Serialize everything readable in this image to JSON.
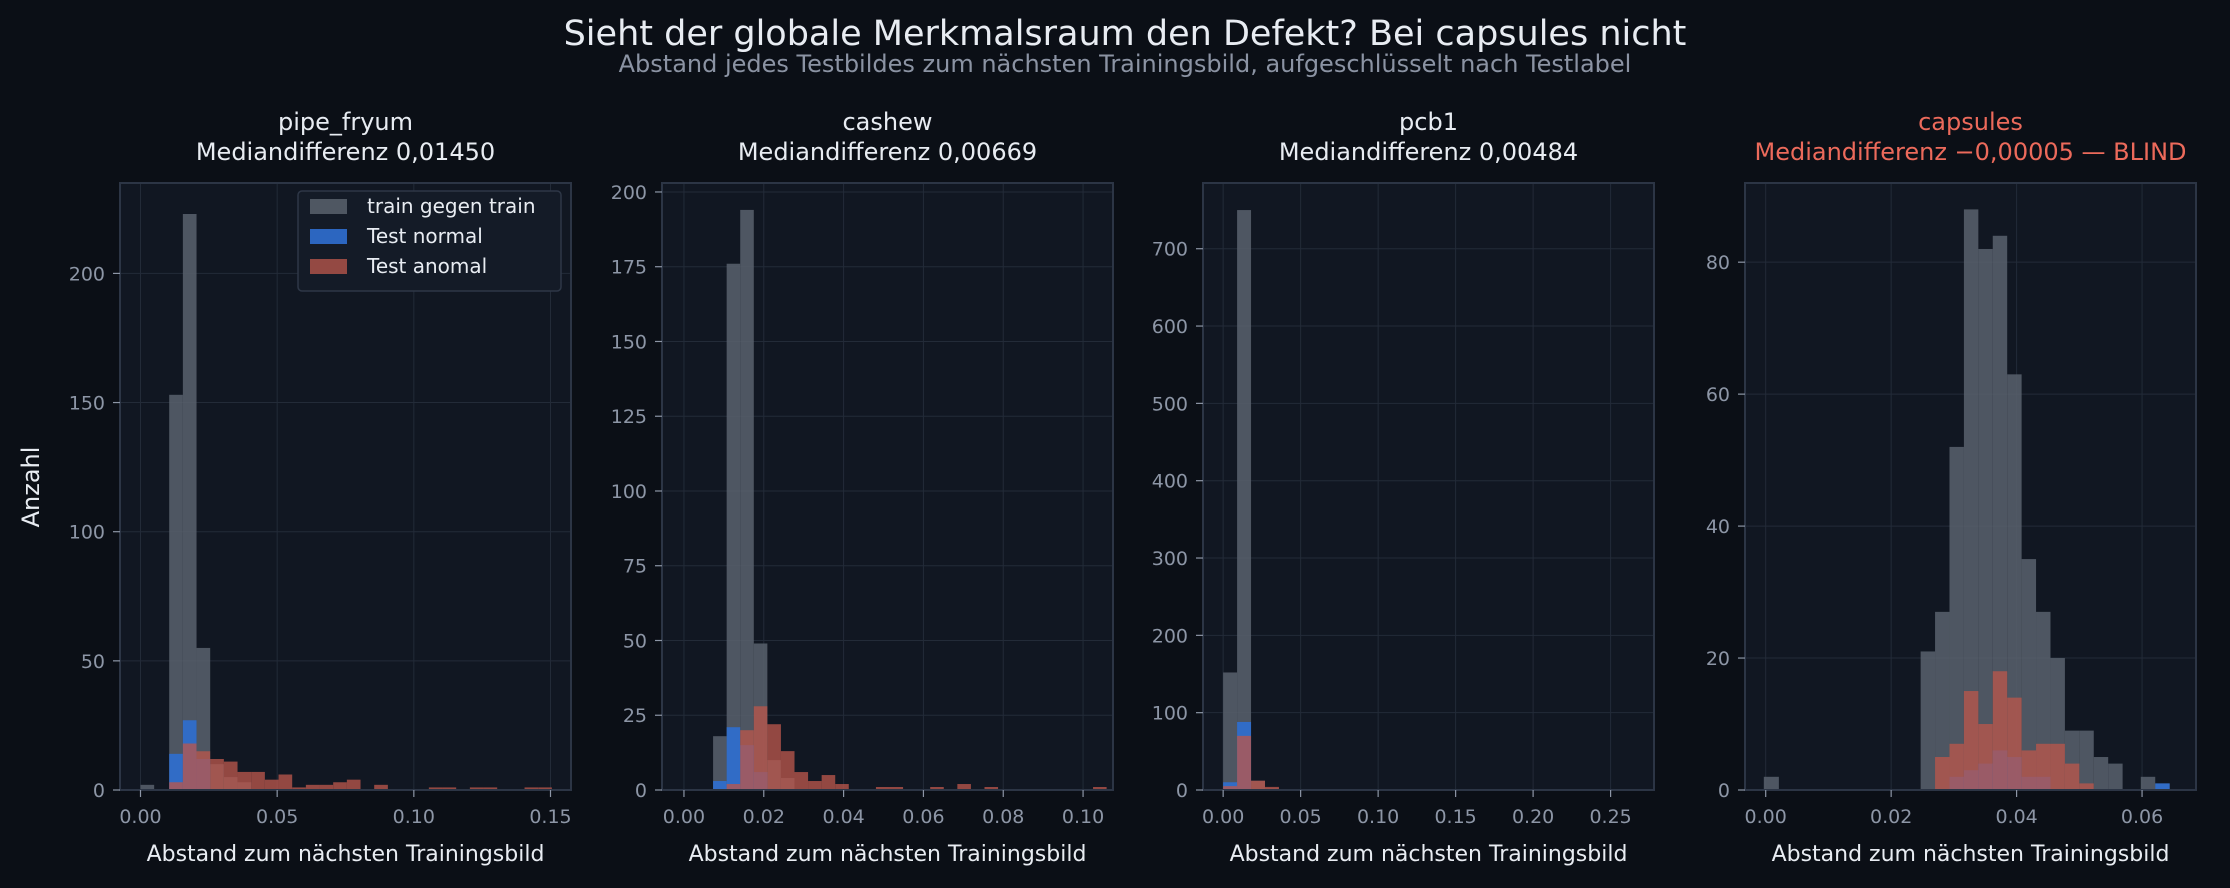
{
  "figure": {
    "title": "Sieht der globale Merkmalsraum den Defekt? Bei capsules nicht",
    "subtitle": "Abstand jedes Testbildes zum nächsten Trainingsbild, aufgeschlüsselt nach Testlabel",
    "ylabel": "Anzahl"
  },
  "colors": {
    "background": "#0b0f16",
    "plot_bg": "#111722",
    "grid": "#232b38",
    "spine": "#2c3545",
    "tick_text": "#8d96a6",
    "text": "#e8ecf2",
    "subtitle": "#8b93a3",
    "highlight": "#ec6a5b",
    "train": "#59616d",
    "test_normal": "#2f6fd1",
    "test_anomal": "#b8564c"
  },
  "legend": {
    "position": "top-right",
    "entries": [
      "train gegen train",
      "Test normal",
      "Test anomal"
    ]
  },
  "chart_data": [
    {
      "type": "bar",
      "title": "pipe_fryum",
      "subtitle": "Mediandifferenz 0,01450",
      "xlabel": "Abstand zum nächsten Trainingsbild",
      "ylabel": "Anzahl",
      "xlim": [
        -0.0075,
        0.1575
      ],
      "ylim": [
        0,
        235
      ],
      "xticks": [
        0.0,
        0.05,
        0.1,
        0.15
      ],
      "xticklabels": [
        "0.00",
        "0.05",
        "0.10",
        "0.15"
      ],
      "yticks": [
        0,
        50,
        100,
        150,
        200
      ],
      "yticklabels": [
        "0",
        "50",
        "100",
        "150",
        "200"
      ],
      "grid": true,
      "legend": true,
      "highlight": false,
      "series": [
        {
          "name": "train gegen train",
          "bins": [
            [
              0.0,
              0.005,
              2
            ],
            [
              0.0105,
              0.0155,
              153
            ],
            [
              0.0155,
              0.0205,
              223
            ],
            [
              0.0205,
              0.0255,
              55
            ],
            [
              0.0255,
              0.0305,
              10
            ],
            [
              0.0305,
              0.0355,
              5
            ],
            [
              0.0355,
              0.0405,
              3
            ]
          ]
        },
        {
          "name": "Test normal",
          "bins": [
            [
              0.0105,
              0.0155,
              14
            ],
            [
              0.0155,
              0.0205,
              27
            ],
            [
              0.0205,
              0.0255,
              12
            ]
          ]
        },
        {
          "name": "Test anomal",
          "bins": [
            [
              0.0105,
              0.0155,
              3
            ],
            [
              0.0155,
              0.0205,
              18
            ],
            [
              0.0205,
              0.0255,
              15
            ],
            [
              0.0255,
              0.0305,
              12
            ],
            [
              0.0305,
              0.0355,
              11
            ],
            [
              0.0355,
              0.0405,
              7
            ],
            [
              0.0405,
              0.0455,
              7
            ],
            [
              0.0455,
              0.0505,
              4
            ],
            [
              0.0505,
              0.0555,
              6
            ],
            [
              0.0555,
              0.0605,
              1
            ],
            [
              0.0605,
              0.0655,
              2
            ],
            [
              0.0655,
              0.0705,
              2
            ],
            [
              0.0705,
              0.0755,
              3
            ],
            [
              0.0755,
              0.0805,
              4
            ],
            [
              0.0855,
              0.0905,
              2
            ],
            [
              0.1055,
              0.1105,
              1
            ],
            [
              0.1105,
              0.1155,
              1
            ],
            [
              0.1205,
              0.1255,
              1
            ],
            [
              0.1255,
              0.1305,
              1
            ],
            [
              0.1405,
              0.1455,
              1
            ],
            [
              0.1455,
              0.1505,
              1
            ]
          ]
        }
      ]
    },
    {
      "type": "bar",
      "title": "cashew",
      "subtitle": "Mediandifferenz 0,00669",
      "xlabel": "Abstand zum nächsten Trainingsbild",
      "ylabel": "",
      "xlim": [
        -0.0055,
        0.1075
      ],
      "ylim": [
        0,
        203
      ],
      "xticks": [
        0.0,
        0.02,
        0.04,
        0.06,
        0.08,
        0.1
      ],
      "xticklabels": [
        "0.00",
        "0.02",
        "0.04",
        "0.06",
        "0.08",
        "0.10"
      ],
      "yticks": [
        0,
        25,
        50,
        75,
        100,
        125,
        150,
        175,
        200
      ],
      "yticklabels": [
        "0",
        "25",
        "50",
        "75",
        "100",
        "125",
        "150",
        "175",
        "200"
      ],
      "grid": true,
      "legend": false,
      "highlight": false,
      "series": [
        {
          "name": "train gegen train",
          "bins": [
            [
              0.0073,
              0.0107,
              18
            ],
            [
              0.0107,
              0.0141,
              176
            ],
            [
              0.0141,
              0.0175,
              194
            ],
            [
              0.0175,
              0.0209,
              49
            ],
            [
              0.0209,
              0.0243,
              10
            ],
            [
              0.0243,
              0.0277,
              4
            ]
          ]
        },
        {
          "name": "Test normal",
          "bins": [
            [
              0.0073,
              0.0107,
              3
            ],
            [
              0.0107,
              0.0141,
              21
            ],
            [
              0.0141,
              0.0175,
              15
            ],
            [
              0.0175,
              0.0209,
              6
            ]
          ]
        },
        {
          "name": "Test anomal",
          "bins": [
            [
              0.0107,
              0.0141,
              2
            ],
            [
              0.0141,
              0.0175,
              20
            ],
            [
              0.0175,
              0.0209,
              28
            ],
            [
              0.0209,
              0.0243,
              22
            ],
            [
              0.0243,
              0.0277,
              13
            ],
            [
              0.0277,
              0.0311,
              6
            ],
            [
              0.0311,
              0.0345,
              3
            ],
            [
              0.0345,
              0.0379,
              5
            ],
            [
              0.0379,
              0.0413,
              2
            ],
            [
              0.0481,
              0.0515,
              1
            ],
            [
              0.0515,
              0.0549,
              1
            ],
            [
              0.0617,
              0.0651,
              1
            ],
            [
              0.0685,
              0.0719,
              2
            ],
            [
              0.0753,
              0.0787,
              1
            ],
            [
              0.1025,
              0.1059,
              1
            ]
          ]
        }
      ]
    },
    {
      "type": "bar",
      "title": "pcb1",
      "subtitle": "Mediandifferenz 0,00484",
      "xlabel": "Abstand zum nächsten Trainingsbild",
      "ylabel": "",
      "xlim": [
        -0.013,
        0.278
      ],
      "ylim": [
        0,
        785
      ],
      "xticks": [
        0.0,
        0.05,
        0.1,
        0.15,
        0.2,
        0.25
      ],
      "xticklabels": [
        "0.00",
        "0.05",
        "0.10",
        "0.15",
        "0.20",
        "0.25"
      ],
      "yticks": [
        0,
        100,
        200,
        300,
        400,
        500,
        600,
        700
      ],
      "yticklabels": [
        "0",
        "100",
        "200",
        "300",
        "400",
        "500",
        "600",
        "700"
      ],
      "grid": true,
      "legend": false,
      "highlight": false,
      "series": [
        {
          "name": "train gegen train",
          "bins": [
            [
              0.0,
              0.009,
              152
            ],
            [
              0.009,
              0.018,
              750
            ],
            [
              0.018,
              0.027,
              12
            ],
            [
              0.027,
              0.036,
              2
            ]
          ]
        },
        {
          "name": "Test normal",
          "bins": [
            [
              0.0,
              0.009,
              10
            ],
            [
              0.009,
              0.018,
              88
            ]
          ]
        },
        {
          "name": "Test anomal",
          "bins": [
            [
              0.0,
              0.009,
              5
            ],
            [
              0.009,
              0.018,
              70
            ],
            [
              0.018,
              0.027,
              12
            ],
            [
              0.027,
              0.036,
              4
            ]
          ]
        }
      ]
    },
    {
      "type": "bar",
      "title": "capsules",
      "subtitle": "Mediandifferenz −0,00005  — BLIND",
      "xlabel": "Abstand zum nächsten Trainingsbild",
      "ylabel": "",
      "xlim": [
        -0.0033,
        0.0686
      ],
      "ylim": [
        0,
        92
      ],
      "xticks": [
        0.0,
        0.02,
        0.04,
        0.06
      ],
      "xticklabels": [
        "0.00",
        "0.02",
        "0.04",
        "0.06"
      ],
      "yticks": [
        0,
        20,
        40,
        60,
        80
      ],
      "yticklabels": [
        "0",
        "20",
        "40",
        "60",
        "80"
      ],
      "grid": true,
      "legend": false,
      "highlight": true,
      "series": [
        {
          "name": "train gegen train",
          "bins": [
            [
              -0.0003,
              0.0021,
              2
            ],
            [
              0.0247,
              0.027,
              21
            ],
            [
              0.027,
              0.0293,
              27
            ],
            [
              0.0293,
              0.0316,
              52
            ],
            [
              0.0316,
              0.0339,
              88
            ],
            [
              0.0339,
              0.0362,
              82
            ],
            [
              0.0362,
              0.0385,
              84
            ],
            [
              0.0385,
              0.0408,
              63
            ],
            [
              0.0408,
              0.0431,
              35
            ],
            [
              0.0431,
              0.0454,
              27
            ],
            [
              0.0454,
              0.0477,
              20
            ],
            [
              0.0477,
              0.05,
              9
            ],
            [
              0.05,
              0.0523,
              9
            ],
            [
              0.0523,
              0.0546,
              5
            ],
            [
              0.0546,
              0.0569,
              4
            ],
            [
              0.0598,
              0.0621,
              2
            ],
            [
              0.0621,
              0.0644,
              1
            ]
          ]
        },
        {
          "name": "Test normal",
          "bins": [
            [
              0.0293,
              0.0316,
              2
            ],
            [
              0.0316,
              0.0339,
              3
            ],
            [
              0.0339,
              0.0362,
              4
            ],
            [
              0.0362,
              0.0385,
              6
            ],
            [
              0.0385,
              0.0408,
              5
            ],
            [
              0.0408,
              0.0431,
              2
            ],
            [
              0.0431,
              0.0454,
              2
            ],
            [
              0.0621,
              0.0644,
              1
            ]
          ]
        },
        {
          "name": "Test anomal",
          "bins": [
            [
              0.027,
              0.0293,
              5
            ],
            [
              0.0293,
              0.0316,
              7
            ],
            [
              0.0316,
              0.0339,
              15
            ],
            [
              0.0339,
              0.0362,
              10
            ],
            [
              0.0362,
              0.0385,
              18
            ],
            [
              0.0385,
              0.0408,
              14
            ],
            [
              0.0408,
              0.0431,
              6
            ],
            [
              0.0431,
              0.0454,
              7
            ],
            [
              0.0454,
              0.0477,
              7
            ],
            [
              0.0477,
              0.05,
              4
            ],
            [
              0.05,
              0.0523,
              1
            ]
          ]
        }
      ]
    }
  ]
}
